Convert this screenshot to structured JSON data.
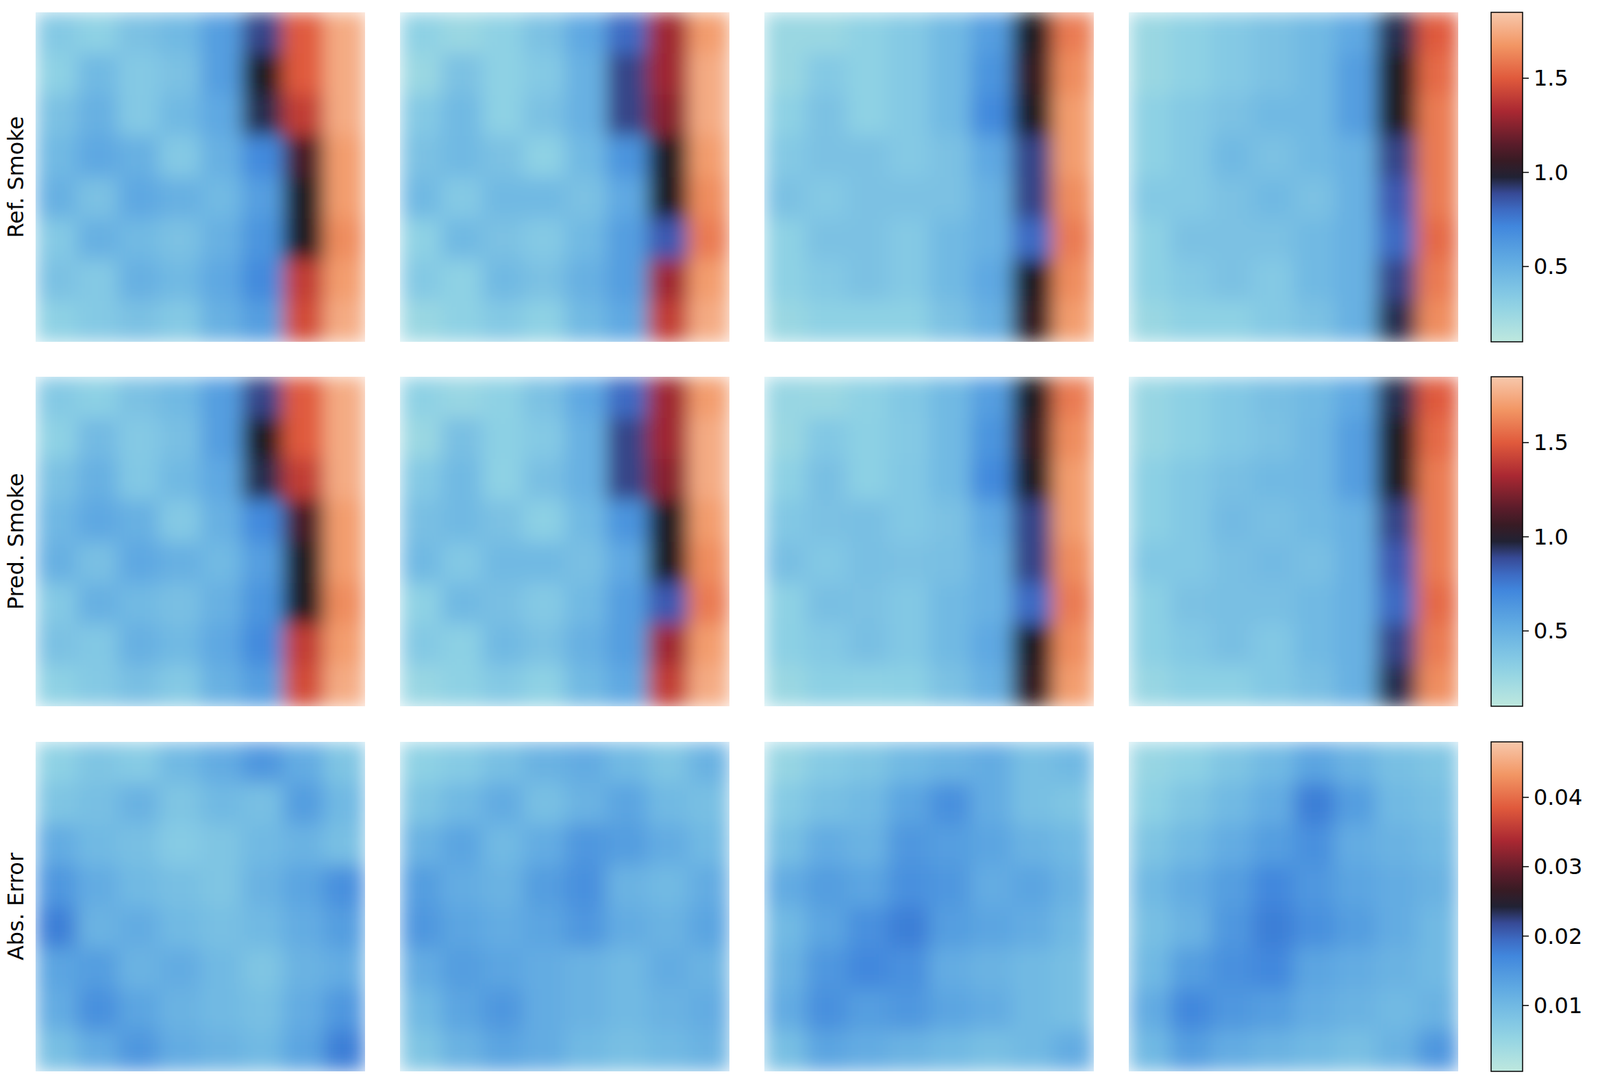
{
  "chart_data": [
    {
      "type": "heatmap",
      "ylabel": "Ref. Smoke",
      "tick_labels": false,
      "colorbar": {
        "range": [
          0.1,
          1.85
        ],
        "ticks": [
          0.5,
          {
            "value": 1,
            "label": "1.0"
          },
          1.5
        ]
      },
      "panels": [
        [
          [
            0.35,
            0.3,
            0.4,
            0.45,
            0.6,
            0.9,
            1.5,
            1.75
          ],
          [
            0.3,
            0.45,
            0.35,
            0.4,
            0.6,
            1.0,
            1.5,
            1.75
          ],
          [
            0.4,
            0.5,
            0.35,
            0.45,
            0.55,
            0.95,
            1.4,
            1.75
          ],
          [
            0.45,
            0.55,
            0.5,
            0.35,
            0.5,
            0.7,
            1.1,
            1.7
          ],
          [
            0.5,
            0.4,
            0.55,
            0.5,
            0.45,
            0.6,
            1.0,
            1.7
          ],
          [
            0.35,
            0.5,
            0.45,
            0.4,
            0.5,
            0.65,
            1.0,
            1.65
          ],
          [
            0.4,
            0.35,
            0.5,
            0.45,
            0.55,
            0.7,
            1.4,
            1.7
          ],
          [
            0.3,
            0.35,
            0.4,
            0.35,
            0.5,
            0.6,
            1.45,
            1.75
          ]
        ],
        [
          [
            0.3,
            0.25,
            0.3,
            0.4,
            0.55,
            0.8,
            1.3,
            1.7
          ],
          [
            0.25,
            0.4,
            0.3,
            0.35,
            0.5,
            0.9,
            1.3,
            1.75
          ],
          [
            0.35,
            0.45,
            0.3,
            0.4,
            0.5,
            0.9,
            1.25,
            1.75
          ],
          [
            0.4,
            0.45,
            0.4,
            0.3,
            0.45,
            0.65,
            1.0,
            1.7
          ],
          [
            0.45,
            0.35,
            0.45,
            0.45,
            0.4,
            0.55,
            1.0,
            1.65
          ],
          [
            0.3,
            0.45,
            0.4,
            0.35,
            0.45,
            0.6,
            0.85,
            1.6
          ],
          [
            0.35,
            0.3,
            0.45,
            0.4,
            0.5,
            0.6,
            1.3,
            1.7
          ],
          [
            0.25,
            0.3,
            0.35,
            0.3,
            0.45,
            0.55,
            1.4,
            1.75
          ]
        ],
        [
          [
            0.25,
            0.25,
            0.3,
            0.35,
            0.45,
            0.6,
            1.0,
            1.6
          ],
          [
            0.25,
            0.35,
            0.3,
            0.35,
            0.45,
            0.65,
            1.05,
            1.65
          ],
          [
            0.3,
            0.4,
            0.3,
            0.35,
            0.45,
            0.7,
            1.0,
            1.7
          ],
          [
            0.35,
            0.4,
            0.4,
            0.35,
            0.4,
            0.55,
            0.9,
            1.7
          ],
          [
            0.4,
            0.35,
            0.4,
            0.4,
            0.4,
            0.5,
            0.9,
            1.65
          ],
          [
            0.3,
            0.4,
            0.4,
            0.35,
            0.45,
            0.5,
            0.8,
            1.6
          ],
          [
            0.3,
            0.35,
            0.4,
            0.35,
            0.45,
            0.55,
            1.0,
            1.65
          ],
          [
            0.25,
            0.3,
            0.3,
            0.3,
            0.4,
            0.5,
            1.05,
            1.7
          ]
        ],
        [
          [
            0.25,
            0.3,
            0.35,
            0.4,
            0.45,
            0.55,
            0.95,
            1.5
          ],
          [
            0.25,
            0.3,
            0.35,
            0.4,
            0.45,
            0.6,
            1.0,
            1.55
          ],
          [
            0.3,
            0.35,
            0.4,
            0.45,
            0.45,
            0.6,
            1.0,
            1.6
          ],
          [
            0.3,
            0.35,
            0.45,
            0.4,
            0.45,
            0.5,
            0.9,
            1.6
          ],
          [
            0.35,
            0.35,
            0.4,
            0.45,
            0.4,
            0.5,
            0.85,
            1.6
          ],
          [
            0.3,
            0.4,
            0.4,
            0.4,
            0.45,
            0.5,
            0.8,
            1.55
          ],
          [
            0.3,
            0.35,
            0.4,
            0.35,
            0.45,
            0.5,
            0.9,
            1.6
          ],
          [
            0.25,
            0.3,
            0.3,
            0.35,
            0.4,
            0.5,
            0.95,
            1.65
          ]
        ]
      ]
    },
    {
      "type": "heatmap",
      "ylabel": "Pred. Smoke",
      "tick_labels": false,
      "colorbar": {
        "range": [
          0.1,
          1.85
        ],
        "ticks": [
          0.5,
          {
            "value": 1,
            "label": "1.0"
          },
          1.5
        ]
      },
      "panels": [
        [
          [
            0.35,
            0.31,
            0.4,
            0.45,
            0.6,
            0.9,
            1.5,
            1.75
          ],
          [
            0.3,
            0.44,
            0.35,
            0.41,
            0.6,
            1.0,
            1.5,
            1.75
          ],
          [
            0.4,
            0.5,
            0.36,
            0.45,
            0.55,
            0.95,
            1.4,
            1.75
          ],
          [
            0.46,
            0.55,
            0.5,
            0.35,
            0.5,
            0.7,
            1.1,
            1.7
          ],
          [
            0.5,
            0.41,
            0.55,
            0.5,
            0.45,
            0.6,
            1.0,
            1.7
          ],
          [
            0.35,
            0.5,
            0.45,
            0.41,
            0.5,
            0.65,
            1.0,
            1.65
          ],
          [
            0.4,
            0.36,
            0.5,
            0.45,
            0.55,
            0.7,
            1.4,
            1.7
          ],
          [
            0.3,
            0.35,
            0.41,
            0.35,
            0.5,
            0.6,
            1.45,
            1.75
          ]
        ],
        [
          [
            0.3,
            0.26,
            0.3,
            0.4,
            0.55,
            0.8,
            1.3,
            1.7
          ],
          [
            0.25,
            0.41,
            0.31,
            0.35,
            0.5,
            0.9,
            1.3,
            1.75
          ],
          [
            0.35,
            0.45,
            0.3,
            0.41,
            0.5,
            0.9,
            1.25,
            1.75
          ],
          [
            0.41,
            0.45,
            0.4,
            0.31,
            0.45,
            0.65,
            1.0,
            1.7
          ],
          [
            0.45,
            0.36,
            0.45,
            0.45,
            0.41,
            0.55,
            1.0,
            1.65
          ],
          [
            0.3,
            0.45,
            0.41,
            0.35,
            0.45,
            0.6,
            0.85,
            1.6
          ],
          [
            0.35,
            0.31,
            0.45,
            0.4,
            0.5,
            0.6,
            1.3,
            1.7
          ],
          [
            0.26,
            0.3,
            0.35,
            0.3,
            0.45,
            0.55,
            1.4,
            1.75
          ]
        ],
        [
          [
            0.26,
            0.25,
            0.3,
            0.36,
            0.45,
            0.6,
            1.0,
            1.6
          ],
          [
            0.25,
            0.36,
            0.31,
            0.35,
            0.45,
            0.65,
            1.05,
            1.65
          ],
          [
            0.3,
            0.41,
            0.31,
            0.36,
            0.45,
            0.7,
            1.0,
            1.7
          ],
          [
            0.36,
            0.4,
            0.41,
            0.36,
            0.4,
            0.55,
            0.9,
            1.7
          ],
          [
            0.41,
            0.36,
            0.41,
            0.4,
            0.41,
            0.5,
            0.9,
            1.65
          ],
          [
            0.3,
            0.41,
            0.4,
            0.36,
            0.45,
            0.5,
            0.8,
            1.6
          ],
          [
            0.31,
            0.35,
            0.41,
            0.36,
            0.45,
            0.55,
            1.0,
            1.65
          ],
          [
            0.25,
            0.31,
            0.3,
            0.31,
            0.4,
            0.5,
            1.05,
            1.7
          ]
        ],
        [
          [
            0.26,
            0.31,
            0.36,
            0.41,
            0.45,
            0.55,
            0.95,
            1.5
          ],
          [
            0.26,
            0.31,
            0.36,
            0.4,
            0.46,
            0.6,
            1.0,
            1.55
          ],
          [
            0.31,
            0.36,
            0.41,
            0.45,
            0.46,
            0.6,
            1.0,
            1.6
          ],
          [
            0.31,
            0.36,
            0.44,
            0.41,
            0.45,
            0.5,
            0.9,
            1.6
          ],
          [
            0.36,
            0.36,
            0.41,
            0.44,
            0.41,
            0.5,
            0.85,
            1.6
          ],
          [
            0.31,
            0.4,
            0.41,
            0.41,
            0.45,
            0.5,
            0.8,
            1.55
          ],
          [
            0.31,
            0.36,
            0.41,
            0.36,
            0.45,
            0.5,
            0.9,
            1.6
          ],
          [
            0.26,
            0.31,
            0.31,
            0.36,
            0.41,
            0.5,
            0.95,
            1.65
          ]
        ]
      ]
    },
    {
      "type": "heatmap",
      "ylabel": "Abs. Error",
      "tick_labels": false,
      "colorbar": {
        "range": [
          0.0005,
          0.048
        ],
        "ticks": [
          0.01,
          0.02,
          0.03,
          0.04
        ]
      },
      "panels": [
        [
          [
            0.006,
            0.008,
            0.007,
            0.01,
            0.012,
            0.015,
            0.012,
            0.008
          ],
          [
            0.008,
            0.009,
            0.011,
            0.008,
            0.01,
            0.009,
            0.014,
            0.01
          ],
          [
            0.012,
            0.01,
            0.009,
            0.007,
            0.008,
            0.01,
            0.011,
            0.009
          ],
          [
            0.015,
            0.012,
            0.01,
            0.009,
            0.008,
            0.011,
            0.013,
            0.016
          ],
          [
            0.018,
            0.011,
            0.012,
            0.01,
            0.009,
            0.01,
            0.012,
            0.014
          ],
          [
            0.013,
            0.014,
            0.011,
            0.012,
            0.01,
            0.008,
            0.011,
            0.012
          ],
          [
            0.012,
            0.016,
            0.013,
            0.011,
            0.01,
            0.009,
            0.012,
            0.015
          ],
          [
            0.009,
            0.012,
            0.015,
            0.012,
            0.011,
            0.01,
            0.013,
            0.018
          ]
        ],
        [
          [
            0.006,
            0.007,
            0.009,
            0.011,
            0.012,
            0.01,
            0.008,
            0.011
          ],
          [
            0.008,
            0.01,
            0.012,
            0.009,
            0.011,
            0.013,
            0.01,
            0.009
          ],
          [
            0.011,
            0.013,
            0.01,
            0.012,
            0.015,
            0.014,
            0.012,
            0.01
          ],
          [
            0.014,
            0.012,
            0.011,
            0.014,
            0.016,
            0.011,
            0.01,
            0.012
          ],
          [
            0.015,
            0.013,
            0.012,
            0.013,
            0.015,
            0.012,
            0.011,
            0.013
          ],
          [
            0.012,
            0.014,
            0.013,
            0.012,
            0.011,
            0.01,
            0.012,
            0.011
          ],
          [
            0.01,
            0.013,
            0.015,
            0.012,
            0.011,
            0.01,
            0.011,
            0.012
          ],
          [
            0.008,
            0.011,
            0.013,
            0.012,
            0.01,
            0.009,
            0.01,
            0.011
          ]
        ],
        [
          [
            0.005,
            0.007,
            0.008,
            0.01,
            0.011,
            0.012,
            0.009,
            0.01
          ],
          [
            0.007,
            0.009,
            0.01,
            0.013,
            0.016,
            0.012,
            0.009,
            0.008
          ],
          [
            0.009,
            0.012,
            0.011,
            0.015,
            0.014,
            0.013,
            0.011,
            0.01
          ],
          [
            0.012,
            0.014,
            0.013,
            0.016,
            0.015,
            0.012,
            0.013,
            0.011
          ],
          [
            0.01,
            0.013,
            0.016,
            0.018,
            0.014,
            0.013,
            0.012,
            0.01
          ],
          [
            0.011,
            0.015,
            0.017,
            0.016,
            0.012,
            0.011,
            0.01,
            0.009
          ],
          [
            0.012,
            0.016,
            0.014,
            0.015,
            0.013,
            0.012,
            0.01,
            0.009
          ],
          [
            0.009,
            0.013,
            0.012,
            0.011,
            0.01,
            0.009,
            0.01,
            0.012
          ]
        ],
        [
          [
            0.005,
            0.006,
            0.008,
            0.01,
            0.013,
            0.011,
            0.009,
            0.008
          ],
          [
            0.006,
            0.008,
            0.01,
            0.012,
            0.018,
            0.014,
            0.01,
            0.009
          ],
          [
            0.008,
            0.01,
            0.012,
            0.014,
            0.016,
            0.012,
            0.011,
            0.01
          ],
          [
            0.01,
            0.012,
            0.014,
            0.017,
            0.015,
            0.013,
            0.012,
            0.011
          ],
          [
            0.009,
            0.011,
            0.015,
            0.018,
            0.016,
            0.014,
            0.012,
            0.01
          ],
          [
            0.01,
            0.014,
            0.016,
            0.017,
            0.013,
            0.012,
            0.011,
            0.01
          ],
          [
            0.012,
            0.017,
            0.015,
            0.014,
            0.012,
            0.011,
            0.01,
            0.011
          ],
          [
            0.01,
            0.014,
            0.012,
            0.011,
            0.01,
            0.009,
            0.011,
            0.015
          ]
        ]
      ]
    }
  ]
}
